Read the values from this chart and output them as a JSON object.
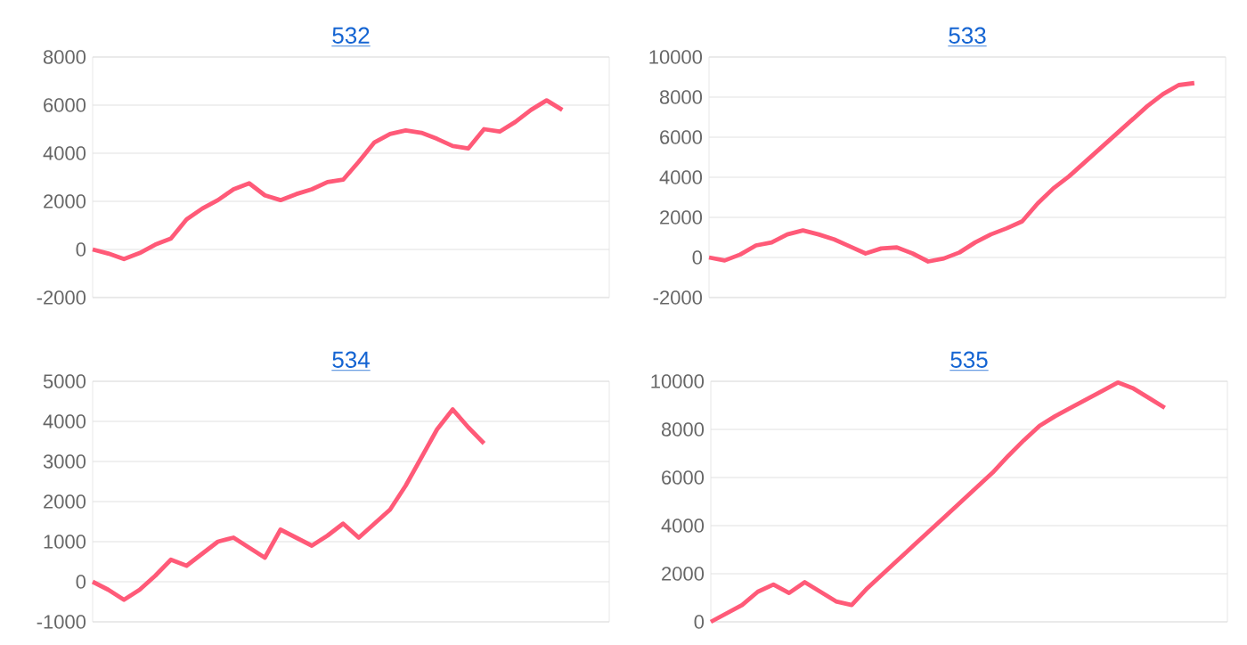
{
  "chart_data": [
    {
      "type": "line",
      "title": "532",
      "color": "#ff5a78",
      "grid": "y",
      "ylim": [
        -2000,
        8000
      ],
      "yticks": [
        -2000,
        0,
        2000,
        4000,
        6000,
        8000
      ],
      "categories": [
        null,
        null,
        null,
        null,
        null,
        null,
        null,
        null,
        null,
        null,
        null,
        null,
        null,
        null,
        null,
        null,
        null,
        null,
        null,
        null,
        null,
        null,
        null,
        null,
        null,
        null,
        null,
        null,
        null,
        null,
        null,
        null,
        null,
        null
      ],
      "values": [
        0,
        -170,
        -400,
        -150,
        200,
        450,
        1250,
        1700,
        2050,
        2500,
        2750,
        2250,
        2050,
        2300,
        2500,
        2800,
        2900,
        3650,
        4450,
        4800,
        4950,
        4850,
        4600,
        4300,
        4200,
        5000,
        4900,
        5300,
        5800,
        6200,
        5800,
        null,
        null,
        null
      ]
    },
    {
      "type": "line",
      "title": "533",
      "color": "#ff5a78",
      "grid": "y",
      "ylim": [
        -2000,
        10000
      ],
      "yticks": [
        -2000,
        0,
        2000,
        4000,
        6000,
        8000,
        10000
      ],
      "categories": [
        null,
        null,
        null,
        null,
        null,
        null,
        null,
        null,
        null,
        null,
        null,
        null,
        null,
        null,
        null,
        null,
        null,
        null,
        null,
        null,
        null,
        null,
        null,
        null,
        null,
        null,
        null,
        null,
        null,
        null,
        null,
        null,
        null,
        null
      ],
      "values": [
        0,
        -150,
        150,
        600,
        750,
        1150,
        1350,
        1150,
        900,
        550,
        200,
        450,
        500,
        200,
        -200,
        -50,
        250,
        750,
        1150,
        1450,
        1800,
        2700,
        3450,
        4050,
        4750,
        5450,
        6150,
        6850,
        7550,
        8150,
        8600,
        8700,
        null,
        null
      ]
    },
    {
      "type": "line",
      "title": "534",
      "color": "#ff5a78",
      "grid": "y",
      "ylim": [
        -1000,
        5000
      ],
      "yticks": [
        -1000,
        0,
        1000,
        2000,
        3000,
        4000,
        5000
      ],
      "categories": [
        null,
        null,
        null,
        null,
        null,
        null,
        null,
        null,
        null,
        null,
        null,
        null,
        null,
        null,
        null,
        null,
        null,
        null,
        null,
        null,
        null,
        null,
        null,
        null,
        null,
        null,
        null,
        null,
        null,
        null,
        null,
        null,
        null,
        null
      ],
      "values": [
        0,
        -200,
        -450,
        -200,
        150,
        550,
        400,
        700,
        1000,
        1100,
        850,
        600,
        1300,
        1100,
        900,
        1150,
        1450,
        1100,
        1450,
        1800,
        2400,
        3100,
        3800,
        4300,
        3850,
        3450,
        null,
        null,
        null,
        null,
        null,
        null,
        null,
        null
      ]
    },
    {
      "type": "line",
      "title": "535",
      "color": "#ff5a78",
      "grid": "y",
      "ylim": [
        0,
        10000
      ],
      "yticks": [
        0,
        2000,
        4000,
        6000,
        8000,
        10000
      ],
      "categories": [
        null,
        null,
        null,
        null,
        null,
        null,
        null,
        null,
        null,
        null,
        null,
        null,
        null,
        null,
        null,
        null,
        null,
        null,
        null,
        null,
        null,
        null,
        null,
        null,
        null,
        null,
        null,
        null,
        null,
        null,
        null,
        null,
        null,
        null
      ],
      "values": [
        0,
        350,
        700,
        1250,
        1550,
        1200,
        1650,
        1250,
        850,
        700,
        1400,
        2000,
        2600,
        3200,
        3800,
        4400,
        5000,
        5600,
        6200,
        6900,
        7550,
        8150,
        8550,
        8900,
        9250,
        9600,
        9950,
        9700,
        9300,
        8900,
        null,
        null,
        null,
        null
      ]
    }
  ]
}
